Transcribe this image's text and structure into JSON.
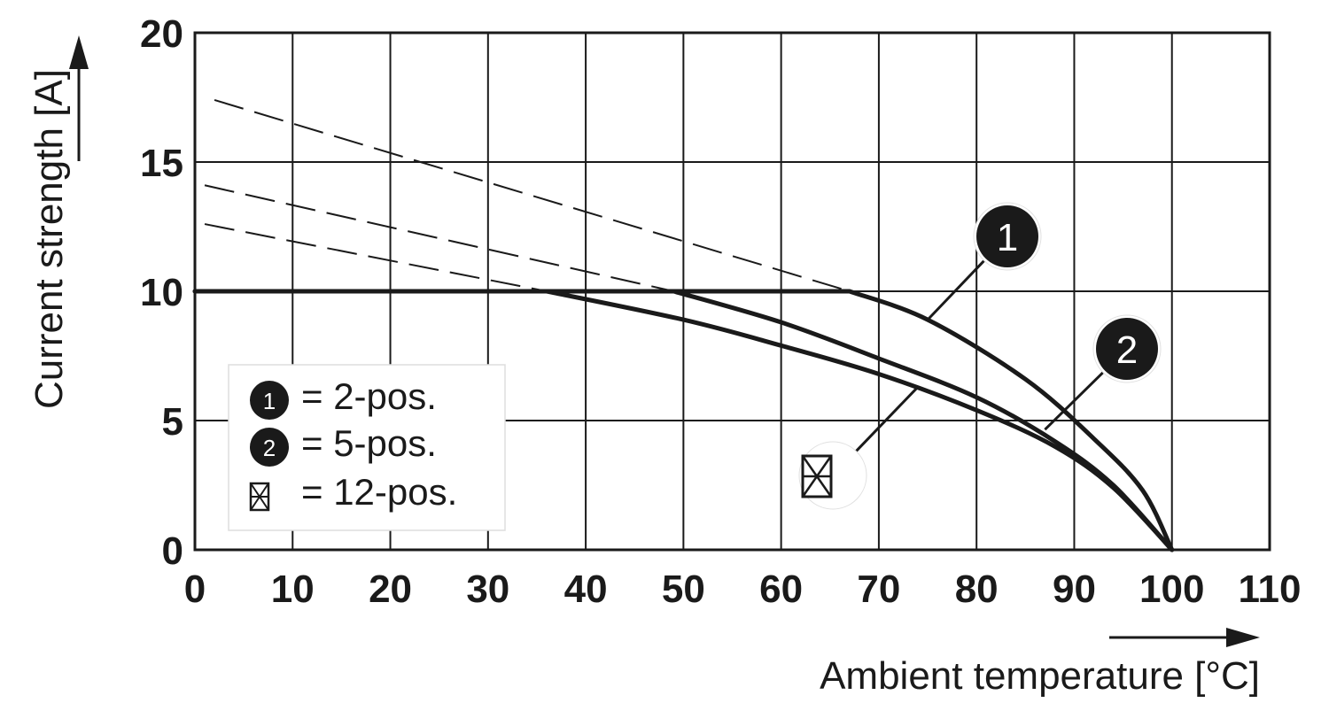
{
  "chart_data": {
    "type": "line",
    "xlabel": "Ambient temperature [°C]",
    "ylabel": "Current strength [A]",
    "xlim": [
      0,
      110
    ],
    "ylim": [
      0,
      20
    ],
    "x_ticks": [
      "0",
      "10",
      "20",
      "30",
      "40",
      "50",
      "60",
      "70",
      "80",
      "90",
      "100",
      "110"
    ],
    "y_ticks": [
      "0",
      "5",
      "10",
      "15",
      "20"
    ],
    "grid": true,
    "legend_position": "bottom-left",
    "series": [
      {
        "marker": "1",
        "legend_label": "= 2-pos.",
        "color": "#1a1a1a",
        "solid": [
          [
            0,
            10
          ],
          [
            67,
            10
          ],
          [
            75,
            8.9
          ],
          [
            85,
            6.6
          ],
          [
            92,
            4.3
          ],
          [
            97,
            2.3
          ],
          [
            100,
            0
          ]
        ],
        "dashed": [
          [
            2,
            17.4
          ],
          [
            67,
            10
          ]
        ]
      },
      {
        "marker": "2",
        "legend_label": "= 5-pos.",
        "color": "#1a1a1a",
        "solid": [
          [
            0,
            10
          ],
          [
            49,
            10
          ],
          [
            60,
            8.8
          ],
          [
            70,
            7.4
          ],
          [
            80,
            5.9
          ],
          [
            88,
            4.2
          ],
          [
            94,
            2.5
          ],
          [
            100,
            0
          ]
        ],
        "dashed": [
          [
            1,
            14.1
          ],
          [
            49,
            10
          ]
        ]
      },
      {
        "marker": "12-pos-icon",
        "legend_label": "= 12-pos.",
        "color": "#1a1a1a",
        "solid": [
          [
            0,
            10
          ],
          [
            36,
            10
          ],
          [
            50,
            8.9
          ],
          [
            60,
            7.9
          ],
          [
            70,
            6.8
          ],
          [
            80,
            5.4
          ],
          [
            88,
            4
          ],
          [
            94,
            2.4
          ],
          [
            100,
            0
          ]
        ],
        "dashed": [
          [
            1,
            12.6
          ],
          [
            36,
            10
          ]
        ]
      }
    ]
  }
}
